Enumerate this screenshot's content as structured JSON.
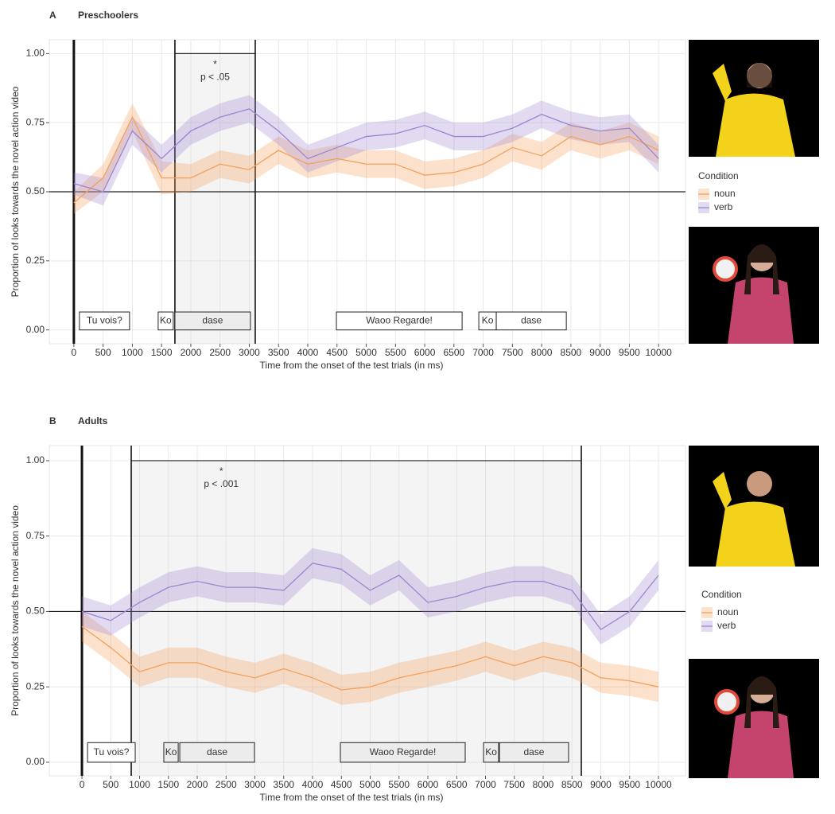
{
  "chart_data": [
    {
      "type": "line",
      "panel": "A",
      "title": "Preschoolers",
      "y_label": "Proportion of looks towards the novel action video",
      "x_label": "Time from the onset of the test trials (in ms)",
      "xlim": [
        -420,
        10460
      ],
      "ylim": [
        -0.05,
        1.05
      ],
      "xticks": [
        0,
        500,
        1000,
        1500,
        2000,
        2500,
        3000,
        3500,
        4000,
        4500,
        5000,
        5500,
        6000,
        6500,
        7000,
        7500,
        8000,
        8500,
        9000,
        9500,
        10000
      ],
      "yticks": [
        {
          "value": 0,
          "label": "0.00"
        },
        {
          "value": 0.25,
          "label": "0.25"
        },
        {
          "value": 0.5,
          "label": "0.50"
        },
        {
          "value": 0.75,
          "label": "0.75"
        },
        {
          "value": 1,
          "label": "1.00"
        }
      ],
      "grid": true,
      "reference_line": 0.5,
      "vlines": [
        0,
        1728,
        3102
      ],
      "significance": {
        "range": [
          1728,
          3102
        ],
        "level": 1,
        "star": "*",
        "text": "p < .05"
      },
      "word_boxes": [
        {
          "label": "Tu vois?",
          "start": 95,
          "end": 952
        },
        {
          "label": "Ko",
          "start": 1442,
          "end": 1700
        },
        {
          "label": "dase",
          "start": 1728,
          "end": 3020
        },
        {
          "label": "Waoo Regarde!",
          "start": 4490,
          "end": 6640
        },
        {
          "label": "Ko",
          "start": 6925,
          "end": 7224
        },
        {
          "label": "dase",
          "start": 7224,
          "end": 8422
        }
      ],
      "legend_title": "Condition",
      "x": [
        0,
        500,
        1000,
        1500,
        2000,
        2500,
        3000,
        3500,
        4000,
        4500,
        5000,
        5500,
        6000,
        6500,
        7000,
        7500,
        8000,
        8500,
        9000,
        9500,
        10000
      ],
      "series": [
        {
          "name": "noun",
          "color": "#f5a05a",
          "values": [
            0.46,
            0.55,
            0.77,
            0.55,
            0.55,
            0.6,
            0.58,
            0.65,
            0.6,
            0.62,
            0.6,
            0.6,
            0.56,
            0.57,
            0.6,
            0.66,
            0.63,
            0.7,
            0.67,
            0.7,
            0.65
          ],
          "lower": [
            0.42,
            0.5,
            0.72,
            0.49,
            0.5,
            0.55,
            0.53,
            0.6,
            0.55,
            0.57,
            0.55,
            0.55,
            0.51,
            0.52,
            0.55,
            0.61,
            0.58,
            0.65,
            0.62,
            0.65,
            0.6
          ],
          "upper": [
            0.5,
            0.6,
            0.82,
            0.61,
            0.6,
            0.65,
            0.63,
            0.7,
            0.65,
            0.67,
            0.65,
            0.65,
            0.61,
            0.62,
            0.65,
            0.71,
            0.68,
            0.75,
            0.72,
            0.75,
            0.7
          ]
        },
        {
          "name": "verb",
          "color": "#9b86d0",
          "values": [
            0.53,
            0.5,
            0.72,
            0.62,
            0.72,
            0.77,
            0.8,
            0.72,
            0.62,
            0.66,
            0.7,
            0.71,
            0.74,
            0.7,
            0.7,
            0.73,
            0.78,
            0.74,
            0.72,
            0.73,
            0.62
          ],
          "lower": [
            0.49,
            0.45,
            0.67,
            0.57,
            0.67,
            0.72,
            0.75,
            0.67,
            0.57,
            0.61,
            0.65,
            0.66,
            0.69,
            0.65,
            0.65,
            0.68,
            0.73,
            0.69,
            0.67,
            0.68,
            0.57
          ],
          "upper": [
            0.57,
            0.55,
            0.77,
            0.67,
            0.77,
            0.82,
            0.85,
            0.77,
            0.67,
            0.71,
            0.75,
            0.76,
            0.79,
            0.75,
            0.75,
            0.78,
            0.83,
            0.79,
            0.77,
            0.78,
            0.67
          ]
        }
      ]
    },
    {
      "type": "line",
      "panel": "B",
      "title": "Adults",
      "y_label": "Proportion of looks towards the novel action video",
      "x_label": "Time from the onset of the test trials (in ms)",
      "xlim": [
        -566,
        10469
      ],
      "ylim": [
        -0.045,
        1.05
      ],
      "xticks": [
        0,
        500,
        1000,
        1500,
        2000,
        2500,
        3000,
        3500,
        4000,
        4500,
        5000,
        5500,
        6000,
        6500,
        7000,
        7500,
        8000,
        8500,
        9000,
        9500,
        10000
      ],
      "yticks": [
        {
          "value": 0,
          "label": "0.00"
        },
        {
          "value": 0.25,
          "label": "0.25"
        },
        {
          "value": 0.5,
          "label": "0.50"
        },
        {
          "value": 0.75,
          "label": "0.75"
        },
        {
          "value": 1,
          "label": "1.00"
        }
      ],
      "grid": true,
      "reference_line": 0.5,
      "vlines": [
        0,
        855,
        8662
      ],
      "significance": {
        "range": [
          855,
          8662
        ],
        "level": 1,
        "star": "*",
        "text": "p < .001"
      },
      "word_boxes": [
        {
          "label": "Tu vois?",
          "start": 97,
          "end": 924
        },
        {
          "label": "Ko",
          "start": 1420,
          "end": 1670
        },
        {
          "label": "dase",
          "start": 1697,
          "end": 2993
        },
        {
          "label": "Waoo Regarde!",
          "start": 4483,
          "end": 6648
        },
        {
          "label": "Ko",
          "start": 6966,
          "end": 7228
        },
        {
          "label": "dase",
          "start": 7241,
          "end": 8441
        }
      ],
      "legend_title": "Condition",
      "x": [
        0,
        500,
        1000,
        1500,
        2000,
        2500,
        3000,
        3500,
        4000,
        4500,
        5000,
        5500,
        6000,
        6500,
        7000,
        7500,
        8000,
        8500,
        9000,
        9500,
        10000
      ],
      "series": [
        {
          "name": "noun",
          "color": "#f5a05a",
          "values": [
            0.45,
            0.38,
            0.3,
            0.33,
            0.33,
            0.3,
            0.28,
            0.31,
            0.28,
            0.24,
            0.25,
            0.28,
            0.3,
            0.32,
            0.35,
            0.32,
            0.35,
            0.33,
            0.28,
            0.27,
            0.25
          ],
          "lower": [
            0.4,
            0.33,
            0.25,
            0.28,
            0.28,
            0.25,
            0.23,
            0.26,
            0.23,
            0.19,
            0.2,
            0.23,
            0.25,
            0.27,
            0.3,
            0.27,
            0.3,
            0.28,
            0.23,
            0.22,
            0.2
          ],
          "upper": [
            0.5,
            0.43,
            0.35,
            0.38,
            0.38,
            0.35,
            0.33,
            0.36,
            0.33,
            0.29,
            0.3,
            0.33,
            0.35,
            0.37,
            0.4,
            0.37,
            0.4,
            0.38,
            0.33,
            0.32,
            0.3
          ]
        },
        {
          "name": "verb",
          "color": "#9b86d0",
          "values": [
            0.5,
            0.47,
            0.53,
            0.58,
            0.6,
            0.58,
            0.58,
            0.57,
            0.66,
            0.64,
            0.57,
            0.62,
            0.53,
            0.55,
            0.58,
            0.6,
            0.6,
            0.57,
            0.44,
            0.5,
            0.62
          ],
          "lower": [
            0.45,
            0.42,
            0.48,
            0.53,
            0.55,
            0.53,
            0.53,
            0.52,
            0.61,
            0.59,
            0.52,
            0.57,
            0.48,
            0.5,
            0.53,
            0.55,
            0.55,
            0.52,
            0.39,
            0.45,
            0.57
          ],
          "upper": [
            0.55,
            0.52,
            0.58,
            0.63,
            0.65,
            0.63,
            0.63,
            0.62,
            0.71,
            0.69,
            0.62,
            0.67,
            0.58,
            0.6,
            0.63,
            0.65,
            0.65,
            0.62,
            0.49,
            0.55,
            0.67
          ]
        }
      ]
    }
  ]
}
